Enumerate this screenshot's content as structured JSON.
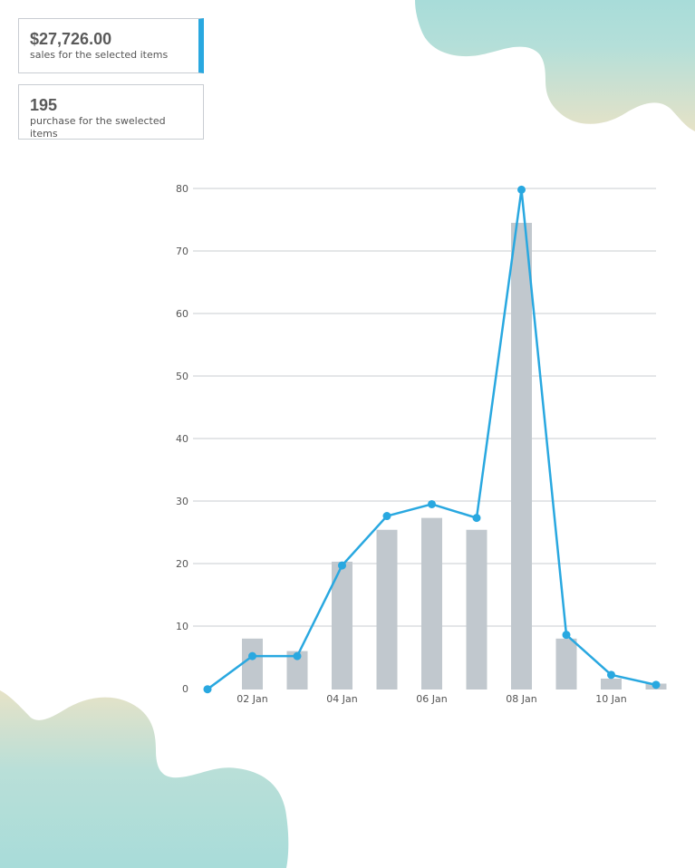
{
  "cards": {
    "sales_value": "$27,726.00",
    "sales_label": "sales for the selected items",
    "purchase_value": "195",
    "purchase_label": "purchase for the swelected items"
  },
  "colors": {
    "line": "#29a8e0",
    "bars": "#c1c8ce",
    "grid": "#c9cdd2",
    "blob_teal": "#a8dcd9",
    "blob_sand": "#e6e2c7"
  },
  "chart_data": {
    "type": "bar",
    "title": "",
    "xlabel": "",
    "ylabel": "",
    "ylim": [
      0,
      80
    ],
    "yticks": [
      0,
      10,
      20,
      30,
      40,
      50,
      60,
      70,
      80
    ],
    "grid": true,
    "x": [
      "01 Jan",
      "02 Jan",
      "03 Jan",
      "04 Jan",
      "05 Jan",
      "06 Jan",
      "07 Jan",
      "08 Jan",
      "09 Jan",
      "10 Jan",
      "11 Jan"
    ],
    "xtick_labels": [
      "",
      "02 Jan",
      "",
      "04 Jan",
      "",
      "06 Jan",
      "",
      "08 Jan",
      "",
      "10 Jan",
      ""
    ],
    "series": [
      {
        "type": "bar",
        "values": [
          0,
          8,
          6,
          20.3,
          25.4,
          27.3,
          25.4,
          74.5,
          8,
          1.6,
          0.8
        ]
      },
      {
        "type": "line",
        "values": [
          -0.1,
          5.2,
          5.2,
          19.7,
          27.6,
          29.5,
          27.3,
          79.8,
          8.6,
          2.2,
          0.6
        ]
      }
    ]
  }
}
